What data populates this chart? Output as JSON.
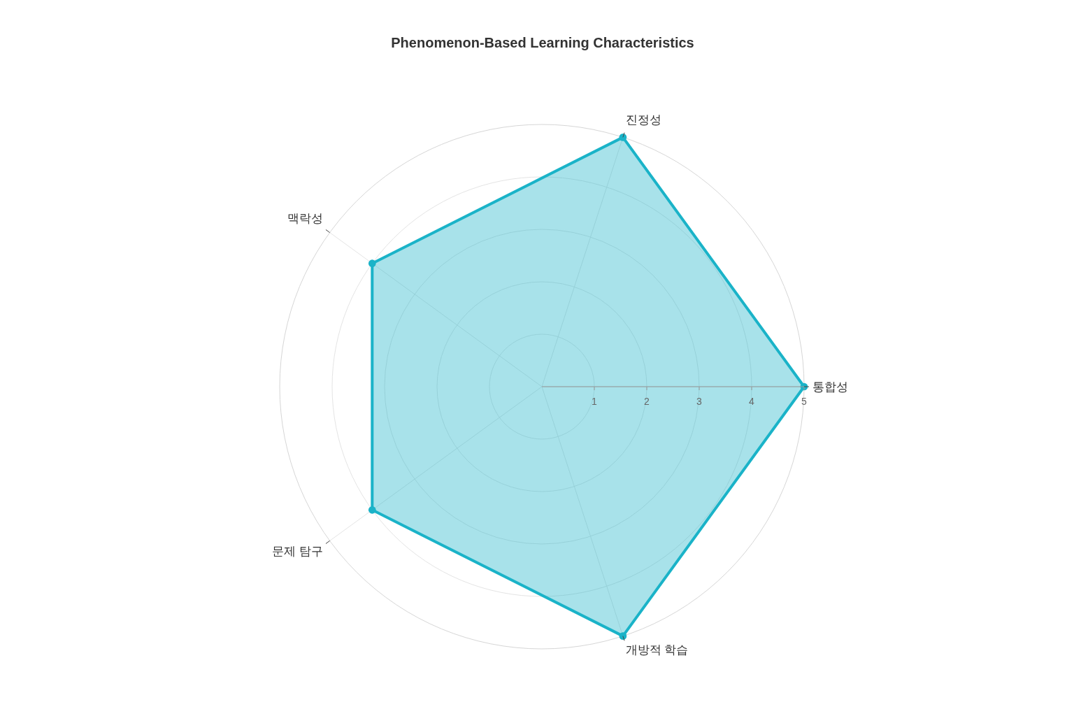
{
  "chart_data": {
    "type": "radar",
    "title": "Phenomenon-Based Learning Characteristics",
    "categories": [
      "진정성",
      "통합성",
      "개방적 학습",
      "문제 탐구",
      "맥락성"
    ],
    "series": [
      {
        "color": "#1ab3c8",
        "values": [
          5,
          5,
          5,
          4,
          4
        ]
      }
    ],
    "ylim": [
      0,
      5
    ],
    "yticks": [
      1,
      2,
      3,
      4,
      5
    ],
    "grid": true,
    "marker": "circle"
  }
}
